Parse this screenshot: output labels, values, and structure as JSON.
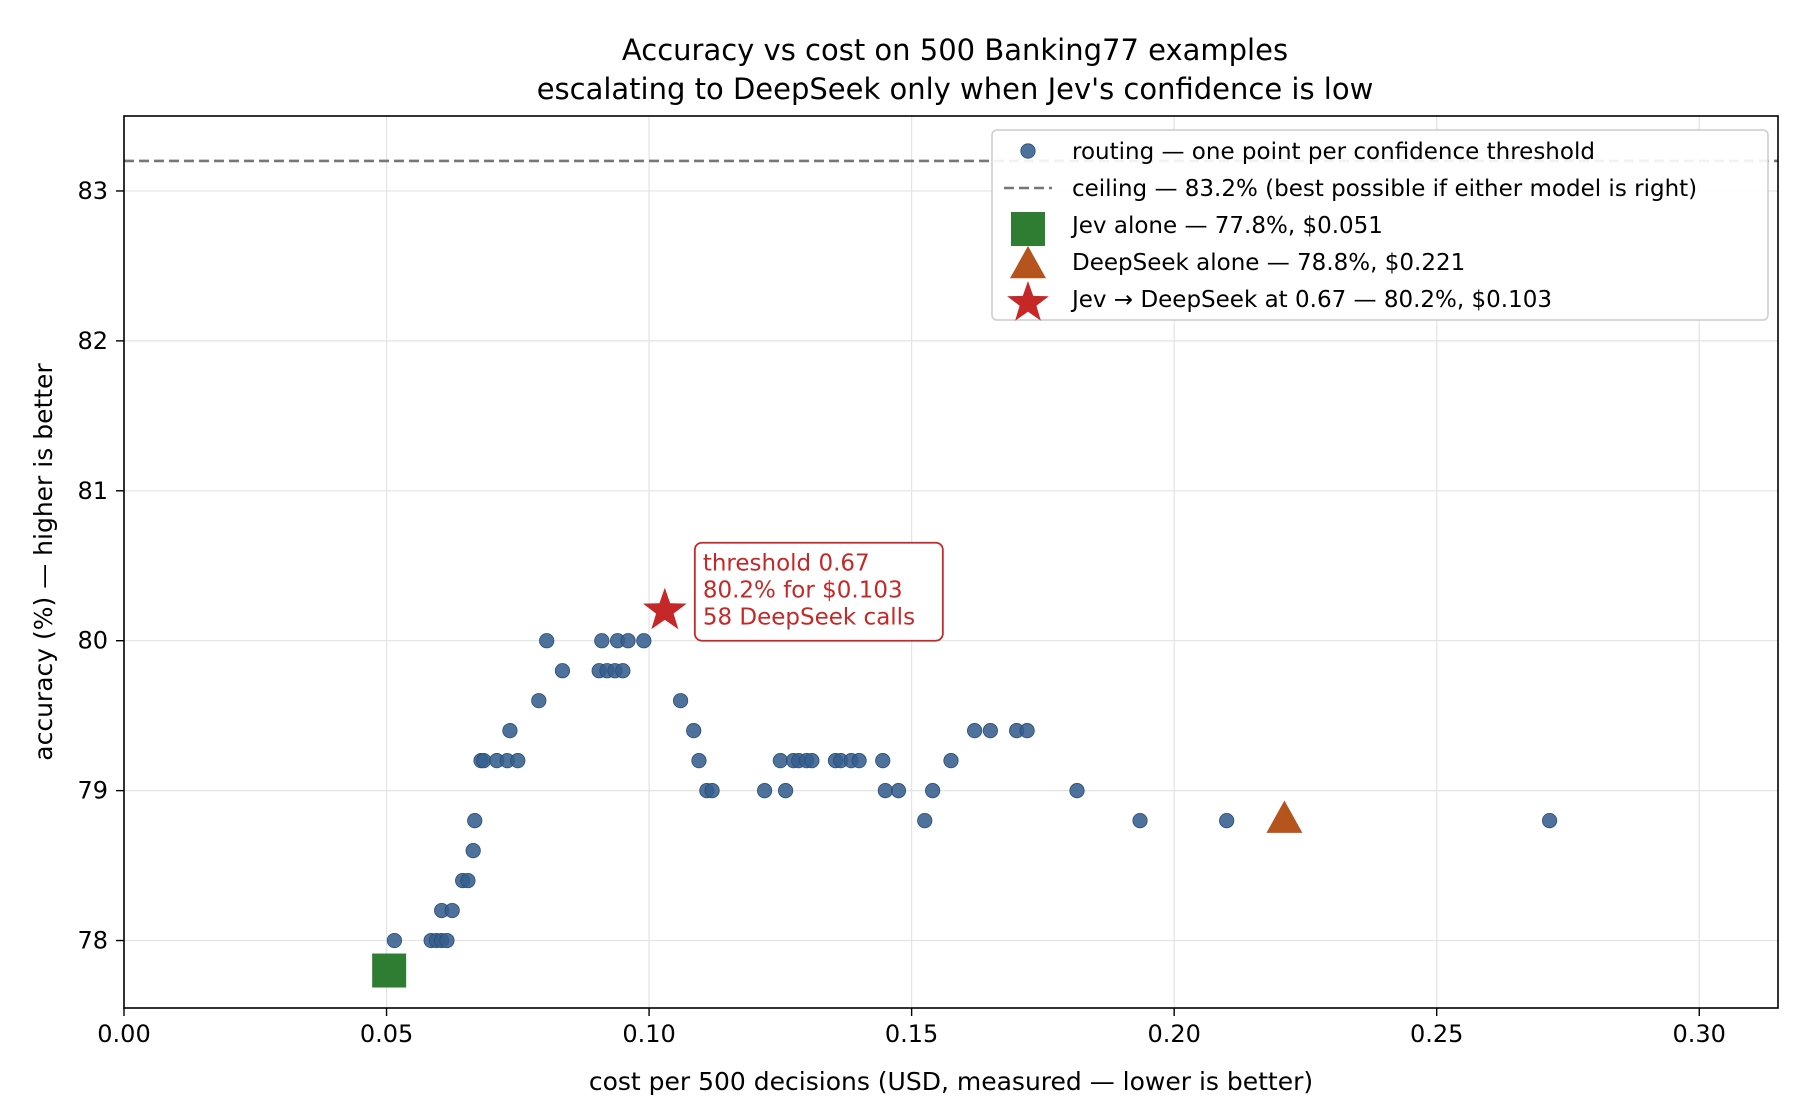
{
  "chart_data": {
    "type": "scatter",
    "title": "Accuracy vs cost on 500 Banking77 examples",
    "subtitle": "escalating to DeepSeek only when Jev's confidence is low",
    "xlabel": "cost per 500 decisions (USD, measured — lower is better)",
    "ylabel": "accuracy (%) — higher is better",
    "xlim": [
      0.0,
      0.315
    ],
    "ylim": [
      77.55,
      83.5
    ],
    "xticks": [
      0.0,
      0.05,
      0.1,
      0.15,
      0.2,
      0.25,
      0.3
    ],
    "xtick_labels": [
      "0.00",
      "0.05",
      "0.10",
      "0.15",
      "0.20",
      "0.25",
      "0.30"
    ],
    "yticks": [
      78,
      79,
      80,
      81,
      82,
      83
    ],
    "ytick_labels": [
      "78",
      "79",
      "80",
      "81",
      "82",
      "83"
    ],
    "grid": true,
    "legend_position": "top-right",
    "colors": {
      "routing": "#355f8d",
      "ceiling": "#777777",
      "jev": "#2e7d32",
      "deepseek": "#b5541c",
      "combo": "#c62828"
    },
    "series": [
      {
        "name": "routing — one point per confidence threshold",
        "kind": "scatter",
        "points": [
          [
            0.0515,
            78.0
          ],
          [
            0.0585,
            78.0
          ],
          [
            0.0595,
            78.0
          ],
          [
            0.0605,
            78.0
          ],
          [
            0.0615,
            78.0
          ],
          [
            0.0605,
            78.2
          ],
          [
            0.0625,
            78.2
          ],
          [
            0.0645,
            78.4
          ],
          [
            0.0655,
            78.4
          ],
          [
            0.0665,
            78.6
          ],
          [
            0.0668,
            78.8
          ],
          [
            0.068,
            79.2
          ],
          [
            0.0685,
            79.2
          ],
          [
            0.071,
            79.2
          ],
          [
            0.073,
            79.2
          ],
          [
            0.075,
            79.2
          ],
          [
            0.0735,
            79.4
          ],
          [
            0.079,
            79.6
          ],
          [
            0.0805,
            80.0
          ],
          [
            0.0835,
            79.8
          ],
          [
            0.0905,
            79.8
          ],
          [
            0.092,
            79.8
          ],
          [
            0.0935,
            79.8
          ],
          [
            0.095,
            79.8
          ],
          [
            0.091,
            80.0
          ],
          [
            0.094,
            80.0
          ],
          [
            0.096,
            80.0
          ],
          [
            0.099,
            80.0
          ],
          [
            0.106,
            79.6
          ],
          [
            0.1085,
            79.4
          ],
          [
            0.1095,
            79.2
          ],
          [
            0.111,
            79.0
          ],
          [
            0.112,
            79.0
          ],
          [
            0.122,
            79.0
          ],
          [
            0.126,
            79.0
          ],
          [
            0.125,
            79.2
          ],
          [
            0.1275,
            79.2
          ],
          [
            0.1285,
            79.2
          ],
          [
            0.13,
            79.2
          ],
          [
            0.131,
            79.2
          ],
          [
            0.1355,
            79.2
          ],
          [
            0.1365,
            79.2
          ],
          [
            0.1385,
            79.2
          ],
          [
            0.14,
            79.2
          ],
          [
            0.1445,
            79.2
          ],
          [
            0.145,
            79.0
          ],
          [
            0.1475,
            79.0
          ],
          [
            0.154,
            79.0
          ],
          [
            0.1525,
            78.8
          ],
          [
            0.1575,
            79.2
          ],
          [
            0.162,
            79.4
          ],
          [
            0.165,
            79.4
          ],
          [
            0.17,
            79.4
          ],
          [
            0.172,
            79.4
          ],
          [
            0.1815,
            79.0
          ],
          [
            0.1935,
            78.8
          ],
          [
            0.21,
            78.8
          ],
          [
            0.2715,
            78.8
          ]
        ]
      },
      {
        "name": "ceiling — 83.2% (best possible if either model is right)",
        "kind": "hline",
        "y": 83.2
      },
      {
        "name": "Jev alone — 77.8%, $0.051",
        "kind": "square",
        "points": [
          [
            0.0505,
            77.8
          ]
        ]
      },
      {
        "name": "DeepSeek alone — 78.8%, $0.221",
        "kind": "triangle",
        "points": [
          [
            0.221,
            78.8
          ]
        ]
      },
      {
        "name": "Jev → DeepSeek at 0.67 — 80.2%, $0.103",
        "kind": "star",
        "points": [
          [
            0.103,
            80.2
          ]
        ]
      }
    ],
    "annotation": {
      "x": 0.103,
      "y": 80.2,
      "lines": [
        "threshold 0.67",
        "80.2% for $0.103",
        "58 DeepSeek calls"
      ]
    }
  }
}
